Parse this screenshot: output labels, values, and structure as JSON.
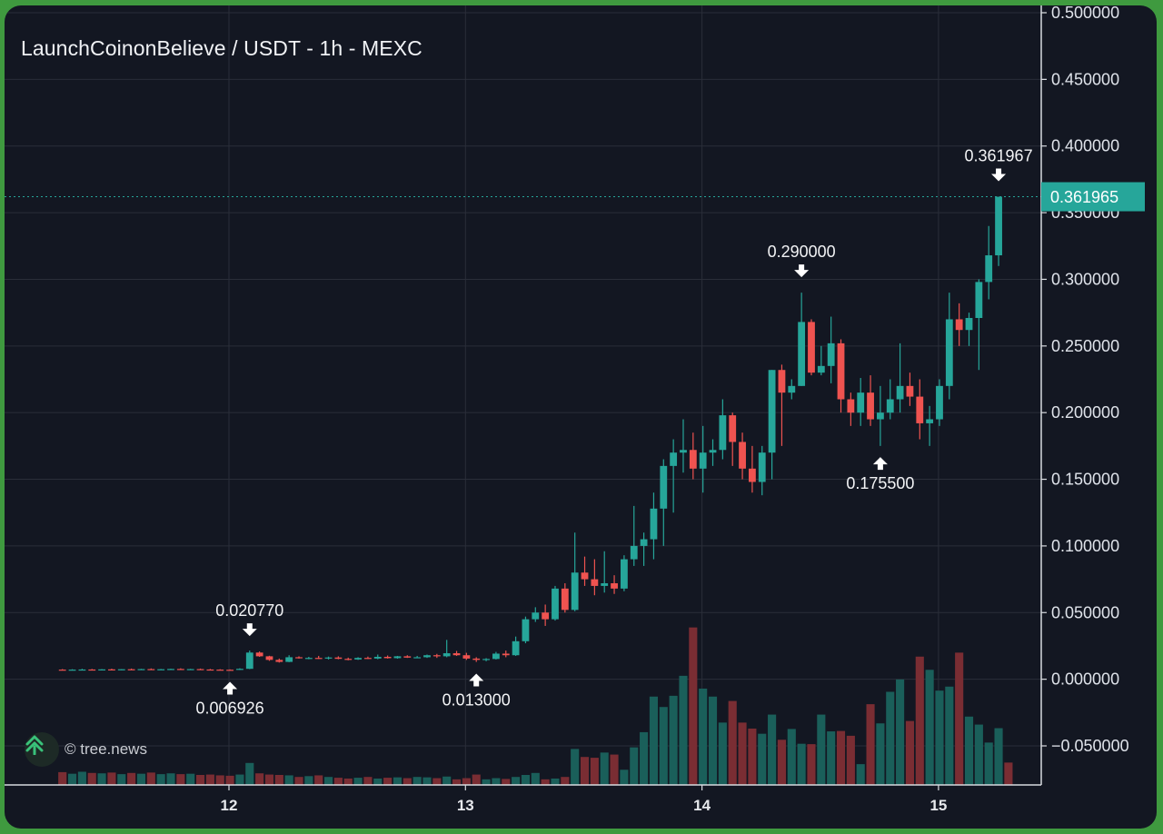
{
  "chart_data": {
    "type": "candlestick",
    "title": "LaunchCoinonBelieve / USDT - 1h - MEXC",
    "pair": "LaunchCoinonBelieve / USDT",
    "timeframe": "1h",
    "exchange": "MEXC",
    "y_axis": {
      "ticks": [
        "0.500000",
        "0.450000",
        "0.400000",
        "0.350000",
        "0.300000",
        "0.250000",
        "0.200000",
        "0.150000",
        "0.100000",
        "0.050000",
        "0.000000",
        "−0.050000"
      ],
      "ylim": [
        -0.05,
        0.5
      ]
    },
    "x_axis": {
      "ticks": [
        "12",
        "13",
        "14",
        "15"
      ]
    },
    "last_price": {
      "value": 0.361965,
      "label": "0.361965"
    },
    "annotations": [
      {
        "label": "0.006926",
        "value": 0.006926,
        "type": "low"
      },
      {
        "label": "0.020770",
        "value": 0.02077,
        "type": "high"
      },
      {
        "label": "0.013000",
        "value": 0.013,
        "type": "low"
      },
      {
        "label": "0.290000",
        "value": 0.29,
        "type": "high"
      },
      {
        "label": "0.175500",
        "value": 0.1755,
        "type": "low"
      },
      {
        "label": "0.361967",
        "value": 0.361967,
        "type": "high"
      }
    ],
    "colors": {
      "up": "#26a69a",
      "down": "#ef5350",
      "vol_up": "#1a5f5a",
      "vol_down": "#7a2d33",
      "background": "#131722"
    },
    "candles_start_day": 11,
    "candles_per_day": 24,
    "candles": [
      [
        0.0072,
        0.0076,
        0.0068,
        0.0071
      ],
      [
        0.0071,
        0.0075,
        0.0066,
        0.0072
      ],
      [
        0.0072,
        0.0078,
        0.0068,
        0.0073
      ],
      [
        0.0073,
        0.0077,
        0.0069,
        0.0071
      ],
      [
        0.0071,
        0.0076,
        0.0067,
        0.0074
      ],
      [
        0.0074,
        0.0079,
        0.007,
        0.0072
      ],
      [
        0.0072,
        0.0076,
        0.0068,
        0.0075
      ],
      [
        0.0075,
        0.008,
        0.0071,
        0.0074
      ],
      [
        0.0074,
        0.0078,
        0.007,
        0.0076
      ],
      [
        0.0076,
        0.0081,
        0.0072,
        0.0073
      ],
      [
        0.0073,
        0.0077,
        0.0069,
        0.0075
      ],
      [
        0.0075,
        0.0079,
        0.0071,
        0.0077
      ],
      [
        0.0077,
        0.0082,
        0.0073,
        0.0074
      ],
      [
        0.0074,
        0.0078,
        0.007,
        0.0076
      ],
      [
        0.0076,
        0.008,
        0.0072,
        0.0073
      ],
      [
        0.0073,
        0.0077,
        0.0069,
        0.0072
      ],
      [
        0.0072,
        0.0075,
        0.0066,
        0.0071
      ],
      [
        0.0071,
        0.0074,
        0.00693,
        0.007
      ],
      [
        0.007,
        0.0082,
        0.0069,
        0.0078
      ],
      [
        0.0078,
        0.0215,
        0.0076,
        0.02
      ],
      [
        0.02,
        0.0208,
        0.0168,
        0.0172
      ],
      [
        0.0172,
        0.0176,
        0.0138,
        0.0145
      ],
      [
        0.0145,
        0.0155,
        0.0125,
        0.013
      ],
      [
        0.013,
        0.018,
        0.0128,
        0.0165
      ],
      [
        0.0165,
        0.0172,
        0.0155,
        0.0158
      ],
      [
        0.0158,
        0.0168,
        0.015,
        0.016
      ],
      [
        0.016,
        0.0175,
        0.0152,
        0.0155
      ],
      [
        0.0155,
        0.017,
        0.0148,
        0.0163
      ],
      [
        0.0163,
        0.0172,
        0.015,
        0.0153
      ],
      [
        0.0153,
        0.0162,
        0.0142,
        0.0148
      ],
      [
        0.0148,
        0.0165,
        0.0145,
        0.016
      ],
      [
        0.016,
        0.017,
        0.0152,
        0.0155
      ],
      [
        0.0155,
        0.0185,
        0.015,
        0.0168
      ],
      [
        0.0168,
        0.0178,
        0.0155,
        0.0158
      ],
      [
        0.0158,
        0.0175,
        0.0154,
        0.0172
      ],
      [
        0.0172,
        0.018,
        0.016,
        0.0162
      ],
      [
        0.0162,
        0.0175,
        0.0158,
        0.0165
      ],
      [
        0.0165,
        0.0185,
        0.016,
        0.018
      ],
      [
        0.018,
        0.019,
        0.016,
        0.0172
      ],
      [
        0.0172,
        0.0295,
        0.0165,
        0.0195
      ],
      [
        0.0195,
        0.0212,
        0.0175,
        0.018
      ],
      [
        0.018,
        0.0198,
        0.0145,
        0.0155
      ],
      [
        0.0155,
        0.0165,
        0.013,
        0.0145
      ],
      [
        0.0145,
        0.0158,
        0.0135,
        0.0152
      ],
      [
        0.0152,
        0.0205,
        0.0148,
        0.0192
      ],
      [
        0.0192,
        0.0215,
        0.0165,
        0.018
      ],
      [
        0.018,
        0.032,
        0.0175,
        0.0285
      ],
      [
        0.0285,
        0.047,
        0.027,
        0.045
      ],
      [
        0.045,
        0.054,
        0.043,
        0.05
      ],
      [
        0.05,
        0.056,
        0.04,
        0.045
      ],
      [
        0.045,
        0.07,
        0.044,
        0.068
      ],
      [
        0.068,
        0.072,
        0.05,
        0.052
      ],
      [
        0.052,
        0.11,
        0.051,
        0.08
      ],
      [
        0.08,
        0.092,
        0.07,
        0.075
      ],
      [
        0.075,
        0.09,
        0.063,
        0.07
      ],
      [
        0.07,
        0.096,
        0.065,
        0.072
      ],
      [
        0.072,
        0.078,
        0.064,
        0.068
      ],
      [
        0.068,
        0.093,
        0.066,
        0.09
      ],
      [
        0.09,
        0.13,
        0.085,
        0.1
      ],
      [
        0.1,
        0.11,
        0.085,
        0.105
      ],
      [
        0.105,
        0.14,
        0.09,
        0.128
      ],
      [
        0.128,
        0.165,
        0.1,
        0.16
      ],
      [
        0.16,
        0.18,
        0.125,
        0.17
      ],
      [
        0.17,
        0.195,
        0.155,
        0.172
      ],
      [
        0.172,
        0.185,
        0.15,
        0.158
      ],
      [
        0.158,
        0.19,
        0.14,
        0.17
      ],
      [
        0.17,
        0.18,
        0.16,
        0.172
      ],
      [
        0.172,
        0.21,
        0.165,
        0.198
      ],
      [
        0.198,
        0.2,
        0.16,
        0.178
      ],
      [
        0.178,
        0.185,
        0.15,
        0.158
      ],
      [
        0.158,
        0.175,
        0.14,
        0.148
      ],
      [
        0.148,
        0.175,
        0.138,
        0.17
      ],
      [
        0.17,
        0.232,
        0.15,
        0.232
      ],
      [
        0.232,
        0.236,
        0.175,
        0.215
      ],
      [
        0.215,
        0.225,
        0.21,
        0.22
      ],
      [
        0.22,
        0.29,
        0.22,
        0.268
      ],
      [
        0.268,
        0.27,
        0.228,
        0.23
      ],
      [
        0.23,
        0.25,
        0.228,
        0.235
      ],
      [
        0.235,
        0.272,
        0.222,
        0.252
      ],
      [
        0.252,
        0.255,
        0.2,
        0.21
      ],
      [
        0.21,
        0.215,
        0.19,
        0.2
      ],
      [
        0.2,
        0.226,
        0.19,
        0.215
      ],
      [
        0.215,
        0.228,
        0.19,
        0.195
      ],
      [
        0.195,
        0.22,
        0.175,
        0.2
      ],
      [
        0.2,
        0.225,
        0.195,
        0.21
      ],
      [
        0.21,
        0.252,
        0.2,
        0.22
      ],
      [
        0.22,
        0.23,
        0.205,
        0.212
      ],
      [
        0.212,
        0.225,
        0.18,
        0.192
      ],
      [
        0.192,
        0.205,
        0.175,
        0.195
      ],
      [
        0.195,
        0.225,
        0.19,
        0.22
      ],
      [
        0.22,
        0.29,
        0.21,
        0.27
      ],
      [
        0.27,
        0.282,
        0.25,
        0.262
      ],
      [
        0.262,
        0.275,
        0.25,
        0.271
      ],
      [
        0.271,
        0.3,
        0.232,
        0.298
      ],
      [
        0.298,
        0.34,
        0.285,
        0.318
      ],
      [
        0.318,
        0.361967,
        0.31,
        0.361965
      ]
    ],
    "volumes": [
      0.32,
      0.28,
      0.33,
      0.3,
      0.29,
      0.31,
      0.27,
      0.3,
      0.28,
      0.31,
      0.27,
      0.29,
      0.27,
      0.28,
      0.25,
      0.26,
      0.24,
      0.23,
      0.26,
      0.55,
      0.29,
      0.26,
      0.25,
      0.24,
      0.2,
      0.22,
      0.24,
      0.2,
      0.18,
      0.16,
      0.18,
      0.2,
      0.16,
      0.18,
      0.19,
      0.17,
      0.2,
      0.19,
      0.17,
      0.21,
      0.14,
      0.17,
      0.26,
      0.14,
      0.17,
      0.15,
      0.2,
      0.25,
      0.3,
      0.14,
      0.16,
      0.2,
      0.9,
      0.7,
      0.68,
      0.81,
      0.76,
      0.38,
      0.94,
      1.32,
      2.21,
      1.95,
      2.23,
      2.73,
      3.94,
      2.41,
      2.21,
      1.56,
      2.1,
      1.56,
      1.41,
      1.28,
      1.76,
      1.13,
      1.4,
      1.03,
      1.02,
      1.76,
      1.34,
      1.35,
      1.23,
      0.52,
      2.02,
      1.54,
      2.33,
      2.64,
      1.6,
      3.21,
      2.88,
      2.36,
      2.46,
      3.31,
      1.71,
      1.51,
      1.06,
      1.42,
      0.56
    ]
  }
}
